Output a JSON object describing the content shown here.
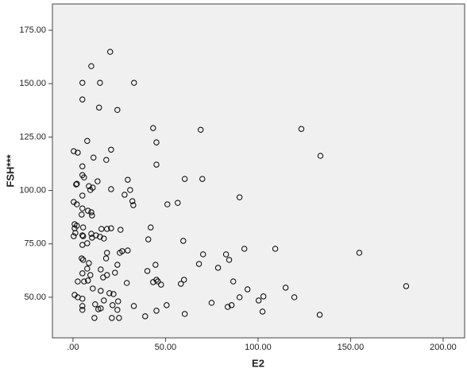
{
  "chart_data": {
    "type": "scatter",
    "x_label": "E2",
    "y_label": "FSH***",
    "xlim": [
      -11.1,
      211.6
    ],
    "ylim": [
      31,
      187.3
    ],
    "xticks": [
      {
        "value": 0,
        "label": ".00"
      },
      {
        "value": 50,
        "label": "50.00"
      },
      {
        "value": 100,
        "label": "100.00"
      },
      {
        "value": 150,
        "label": "150.00"
      },
      {
        "value": 200,
        "label": "200.00"
      }
    ],
    "yticks": [
      {
        "value": 50,
        "label": "50.00"
      },
      {
        "value": 75,
        "label": "75.00"
      },
      {
        "value": 100,
        "label": "100.00"
      },
      {
        "value": 125,
        "label": "125.00"
      },
      {
        "value": 150,
        "label": "150.00"
      },
      {
        "value": 175,
        "label": "175.00"
      }
    ],
    "color": "#000000",
    "background": "#f0f0f0",
    "x": [
      20.1,
      9.9,
      5.1,
      14.6,
      33,
      5.1,
      14.1,
      24,
      43.3,
      69,
      123.4,
      45.1,
      7.7,
      0.4,
      2.6,
      20.6,
      133.7,
      11.1,
      18,
      45.1,
      5.1,
      5.1,
      6,
      29.6,
      60.4,
      69.9,
      1.7,
      2.1,
      8.6,
      13.3,
      9.4,
      10.7,
      20.6,
      30.9,
      27.9,
      5.1,
      90,
      32.1,
      32.6,
      0.4,
      2.1,
      5.1,
      8.1,
      9.9,
      10.3,
      51,
      56.6,
      4.7,
      0.9,
      0.9,
      1.3,
      0.4,
      2.1,
      5.5,
      15.4,
      18.4,
      20.6,
      25.7,
      42,
      9.9,
      12.4,
      5.1,
      5.5,
      14.6,
      10.3,
      16.7,
      40.7,
      7.7,
      59.6,
      5.1,
      109.3,
      92.6,
      154.7,
      18.4,
      25.3,
      26.6,
      29.6,
      70.3,
      82.7,
      84.4,
      17.9,
      4.7,
      5.5,
      8.6,
      44.6,
      68.1,
      24,
      78.4,
      40.2,
      22.7,
      15,
      7.7,
      5.1,
      9.4,
      18.4,
      16.3,
      2.6,
      6,
      8.1,
      43.3,
      45.1,
      45.9,
      47.6,
      60,
      58.3,
      86.6,
      29.1,
      10.7,
      94.3,
      114.9,
      180,
      19.7,
      21.9,
      15,
      0.9,
      2.6,
      5.1,
      90,
      102.9,
      119.6,
      16.7,
      24.4,
      74.9,
      21.4,
      12,
      32.9,
      50.6,
      5.1,
      85.7,
      83.6,
      100.3,
      5.1,
      13.7,
      15,
      24,
      45.1,
      39,
      60.4,
      102.4,
      133.3,
      11.6,
      21,
      24.9
    ],
    "y": [
      164.9,
      158.2,
      150.4,
      150.4,
      150.4,
      142.6,
      138.8,
      137.7,
      129.2,
      128.4,
      128.8,
      122.5,
      123.2,
      118.4,
      117.7,
      119.1,
      116.2,
      115.4,
      114.3,
      112.1,
      111.3,
      107.2,
      106.1,
      105,
      105.4,
      105.4,
      102.8,
      103.1,
      102,
      104.3,
      100.2,
      101.3,
      100.6,
      100.2,
      98,
      97.6,
      96.8,
      95,
      93.1,
      94.6,
      93.5,
      91.6,
      90.5,
      89.8,
      88.3,
      93.5,
      94.2,
      88.7,
      84.2,
      82.3,
      80.1,
      78.6,
      83.5,
      82.7,
      82,
      82,
      82.3,
      81.6,
      82.7,
      79.7,
      79,
      79,
      78.6,
      78.3,
      77.9,
      77.5,
      77.1,
      75.3,
      76.4,
      74.5,
      72.7,
      72.7,
      70.8,
      70.8,
      70.8,
      71.6,
      71.9,
      70.1,
      70.1,
      67.5,
      68.2,
      68.2,
      67.5,
      66,
      65.2,
      65.6,
      65.2,
      63.8,
      62.3,
      61.5,
      63,
      63.4,
      61.2,
      60.4,
      60.4,
      59.3,
      57.4,
      57.4,
      57.8,
      57.1,
      58.2,
      57.4,
      55.9,
      58.2,
      56.3,
      57.4,
      56.7,
      54.1,
      53.7,
      54.5,
      55.2,
      51.9,
      51.5,
      53,
      51.1,
      50,
      49.3,
      50,
      50.4,
      50,
      48.5,
      48.1,
      47.4,
      46.3,
      46.7,
      45.9,
      46.3,
      45.9,
      46.3,
      45.5,
      48.5,
      44.1,
      44.4,
      44.8,
      44.1,
      43.7,
      41.1,
      42.2,
      43.3,
      41.8,
      40.3,
      40.3,
      40.3
    ]
  }
}
